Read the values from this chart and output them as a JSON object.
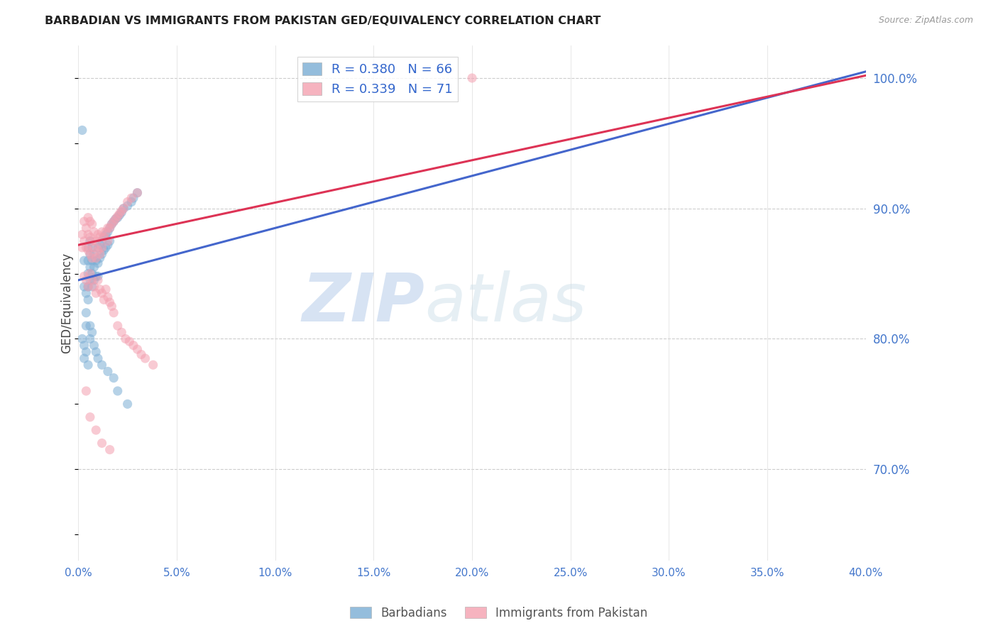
{
  "title": "BARBADIAN VS IMMIGRANTS FROM PAKISTAN GED/EQUIVALENCY CORRELATION CHART",
  "source": "Source: ZipAtlas.com",
  "ylabel": "GED/Equivalency",
  "ytick_labels": [
    "70.0%",
    "80.0%",
    "90.0%",
    "100.0%"
  ],
  "ytick_values": [
    0.7,
    0.8,
    0.9,
    1.0
  ],
  "xtick_values": [
    0.0,
    0.05,
    0.1,
    0.15,
    0.2,
    0.25,
    0.3,
    0.35,
    0.4
  ],
  "xmin": 0.0,
  "xmax": 0.4,
  "ymin": 0.63,
  "ymax": 1.025,
  "blue_R": 0.38,
  "blue_N": 66,
  "pink_R": 0.339,
  "pink_N": 71,
  "blue_color": "#7aadd4",
  "pink_color": "#f4a0b0",
  "blue_line_color": "#4466cc",
  "pink_line_color": "#dd3355",
  "scatter_alpha": 0.55,
  "scatter_size": 90,
  "legend_label_blue": "Barbadians",
  "legend_label_pink": "Immigrants from Pakistan",
  "watermark_zip": "ZIP",
  "watermark_atlas": "atlas",
  "blue_line_x0": 0.0,
  "blue_line_y0": 0.845,
  "blue_line_x1": 0.4,
  "blue_line_y1": 1.005,
  "pink_line_x0": 0.0,
  "pink_line_y0": 0.872,
  "pink_line_x1": 0.4,
  "pink_line_y1": 1.002,
  "blue_scatter_x": [
    0.002,
    0.003,
    0.003,
    0.004,
    0.004,
    0.004,
    0.005,
    0.005,
    0.005,
    0.005,
    0.005,
    0.006,
    0.006,
    0.006,
    0.006,
    0.007,
    0.007,
    0.007,
    0.007,
    0.008,
    0.008,
    0.008,
    0.009,
    0.009,
    0.01,
    0.01,
    0.01,
    0.011,
    0.011,
    0.012,
    0.012,
    0.013,
    0.013,
    0.014,
    0.014,
    0.015,
    0.015,
    0.016,
    0.016,
    0.017,
    0.018,
    0.019,
    0.02,
    0.021,
    0.022,
    0.023,
    0.025,
    0.027,
    0.028,
    0.03,
    0.002,
    0.003,
    0.003,
    0.004,
    0.005,
    0.006,
    0.006,
    0.007,
    0.008,
    0.009,
    0.01,
    0.012,
    0.015,
    0.018,
    0.02,
    0.025
  ],
  "blue_scatter_y": [
    0.96,
    0.86,
    0.84,
    0.835,
    0.82,
    0.81,
    0.87,
    0.86,
    0.85,
    0.84,
    0.83,
    0.875,
    0.865,
    0.855,
    0.845,
    0.87,
    0.86,
    0.85,
    0.84,
    0.865,
    0.855,
    0.845,
    0.86,
    0.848,
    0.87,
    0.858,
    0.848,
    0.872,
    0.862,
    0.875,
    0.865,
    0.878,
    0.868,
    0.88,
    0.87,
    0.882,
    0.872,
    0.885,
    0.875,
    0.888,
    0.89,
    0.892,
    0.893,
    0.895,
    0.897,
    0.9,
    0.902,
    0.905,
    0.908,
    0.912,
    0.8,
    0.795,
    0.785,
    0.79,
    0.78,
    0.8,
    0.81,
    0.805,
    0.795,
    0.79,
    0.785,
    0.78,
    0.775,
    0.77,
    0.76,
    0.75
  ],
  "pink_scatter_x": [
    0.002,
    0.002,
    0.003,
    0.003,
    0.004,
    0.004,
    0.005,
    0.005,
    0.005,
    0.006,
    0.006,
    0.006,
    0.007,
    0.007,
    0.007,
    0.008,
    0.008,
    0.009,
    0.009,
    0.01,
    0.01,
    0.011,
    0.011,
    0.012,
    0.012,
    0.013,
    0.014,
    0.015,
    0.015,
    0.016,
    0.017,
    0.018,
    0.019,
    0.02,
    0.021,
    0.022,
    0.023,
    0.025,
    0.027,
    0.03,
    0.003,
    0.004,
    0.005,
    0.006,
    0.007,
    0.008,
    0.009,
    0.01,
    0.011,
    0.012,
    0.013,
    0.014,
    0.015,
    0.016,
    0.017,
    0.018,
    0.02,
    0.022,
    0.024,
    0.026,
    0.028,
    0.03,
    0.032,
    0.034,
    0.038,
    0.2,
    0.004,
    0.006,
    0.009,
    0.012,
    0.016
  ],
  "pink_scatter_y": [
    0.88,
    0.87,
    0.89,
    0.875,
    0.885,
    0.87,
    0.893,
    0.88,
    0.868,
    0.89,
    0.878,
    0.865,
    0.888,
    0.875,
    0.862,
    0.882,
    0.87,
    0.875,
    0.862,
    0.88,
    0.868,
    0.878,
    0.865,
    0.882,
    0.87,
    0.878,
    0.882,
    0.885,
    0.875,
    0.885,
    0.888,
    0.89,
    0.892,
    0.894,
    0.896,
    0.898,
    0.9,
    0.905,
    0.908,
    0.912,
    0.848,
    0.845,
    0.84,
    0.85,
    0.845,
    0.84,
    0.835,
    0.845,
    0.838,
    0.835,
    0.83,
    0.838,
    0.832,
    0.828,
    0.825,
    0.82,
    0.81,
    0.805,
    0.8,
    0.798,
    0.795,
    0.792,
    0.788,
    0.785,
    0.78,
    1.0,
    0.76,
    0.74,
    0.73,
    0.72,
    0.715
  ]
}
